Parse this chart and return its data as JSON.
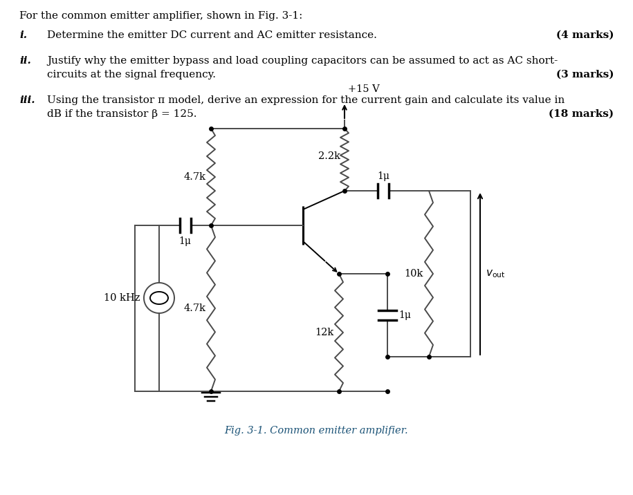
{
  "title_text": "For the common emitter amplifier, shown in Fig. 3-1:",
  "q1_label": "i.",
  "q1_text": "Determine the emitter DC current and AC emitter resistance.",
  "q1_marks": "(4 marks)",
  "q2_label": "ii.",
  "q2_line1": "Justify why the emitter bypass and load coupling capacitors can be assumed to act as AC short-",
  "q2_line2": "circuits at the signal frequency.",
  "q2_marks": "(3 marks)",
  "q3_label": "iii.",
  "q3_line1": "Using the transistor π model, derive an expression for the current gain and calculate its value in",
  "q3_line2": "dB if the transistor β = 125.",
  "q3_marks": "(18 marks)",
  "fig_caption": "Fig. 3-1. Common emitter amplifier.",
  "vcc_label": "+15 V",
  "r1_label": "4.7k",
  "r2_label": "2.2k",
  "r3_label": "4.7k",
  "r4_label": "12k",
  "r5_label": "10k",
  "c1_label": "1μ",
  "c2_label": "1μ",
  "c3_label": "1μ",
  "src_label": "10 kHz",
  "background_color": "#ffffff",
  "text_color": "#000000",
  "circuit_color": "#4a4a4a",
  "marks_color": "#000000"
}
